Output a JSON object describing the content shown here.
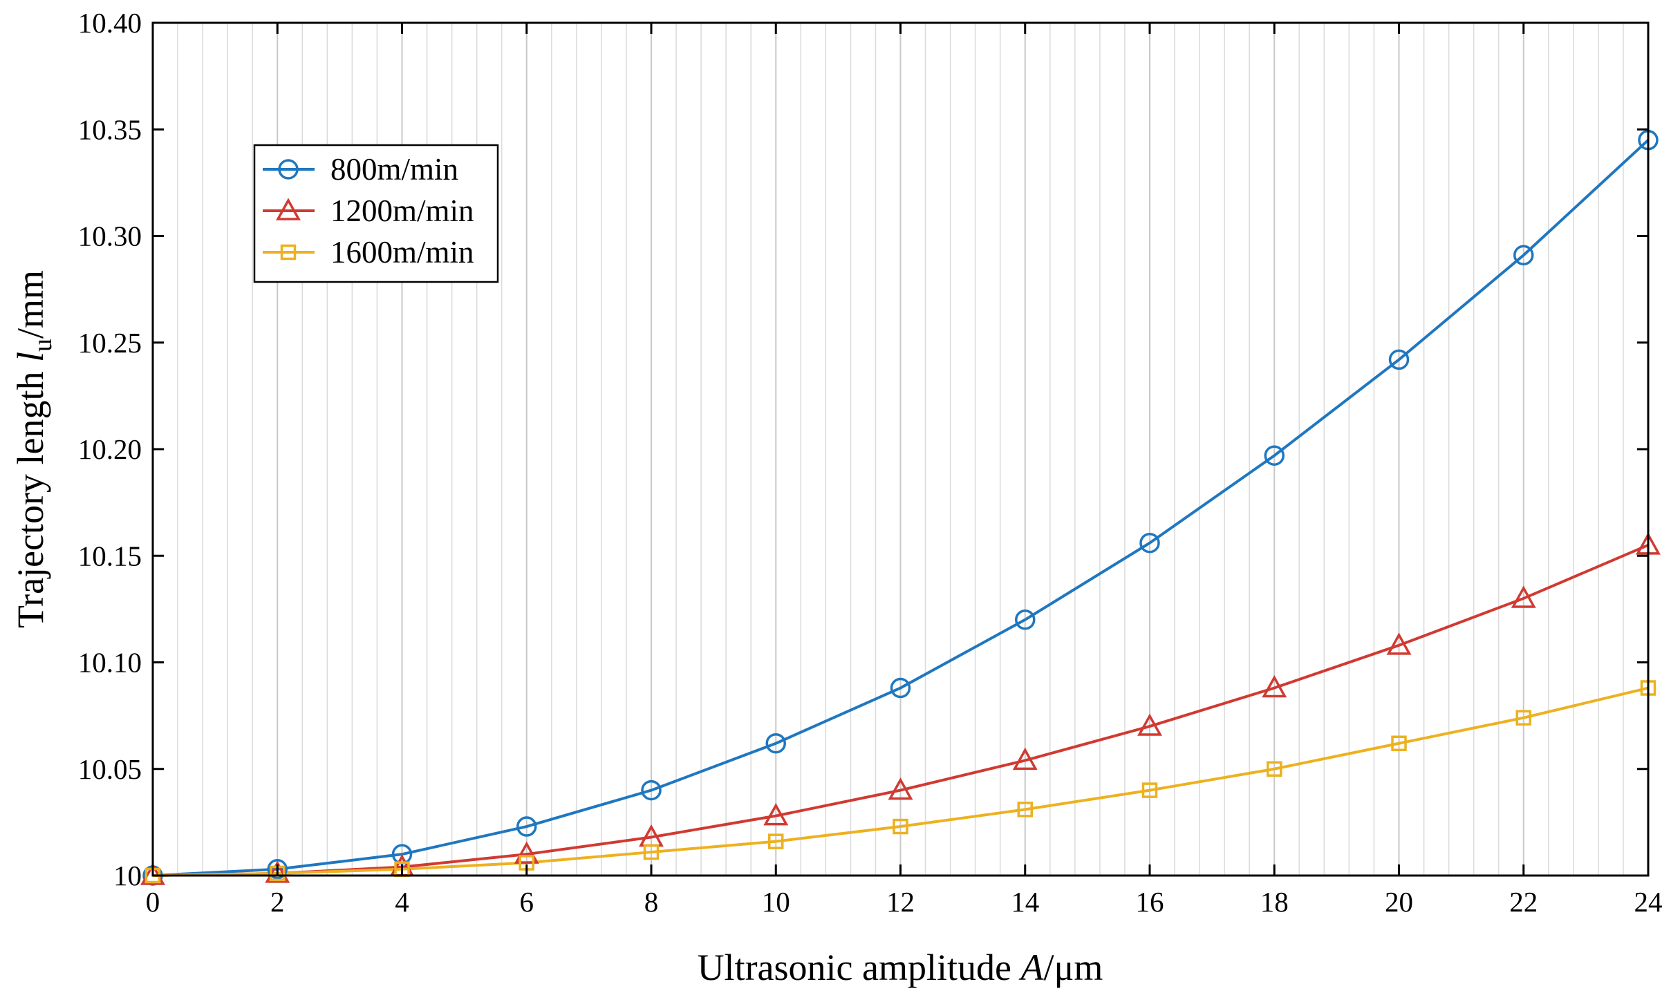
{
  "chart_data": {
    "type": "line",
    "title": "",
    "x": [
      0,
      2,
      4,
      6,
      8,
      10,
      12,
      14,
      16,
      18,
      20,
      22,
      24
    ],
    "xlabel": {
      "main": "Ultrasonic amplitude ",
      "var": "A",
      "unit": "/μm"
    },
    "ylabel": {
      "main": "Trajectory length ",
      "var": "l",
      "sub": "u",
      "unit": "/mm"
    },
    "xlim": [
      0,
      24
    ],
    "ylim": [
      10,
      10.4
    ],
    "xticks": [
      "0",
      "2",
      "4",
      "6",
      "8",
      "10",
      "12",
      "14",
      "16",
      "18",
      "20",
      "22",
      "24"
    ],
    "yticks": [
      "10",
      "10.05",
      "10.10",
      "10.15",
      "10.20",
      "10.25",
      "10.30",
      "10.35",
      "10.40"
    ],
    "grid": "vertical minor gridlines",
    "legend_position": "top-left",
    "series": [
      {
        "name": "800m/min",
        "color": "#1F77C0",
        "marker": "circle",
        "values": [
          10.0,
          10.003,
          10.01,
          10.023,
          10.04,
          10.062,
          10.088,
          10.12,
          10.156,
          10.197,
          10.242,
          10.291,
          10.345
        ]
      },
      {
        "name": "1200m/min",
        "color": "#D03A32",
        "marker": "triangle",
        "values": [
          10.0,
          10.001,
          10.004,
          10.01,
          10.018,
          10.028,
          10.04,
          10.054,
          10.07,
          10.088,
          10.108,
          10.13,
          10.155
        ]
      },
      {
        "name": "1600m/min",
        "color": "#EDB120",
        "marker": "square",
        "values": [
          10.0,
          10.001,
          10.003,
          10.006,
          10.011,
          10.016,
          10.023,
          10.031,
          10.04,
          10.05,
          10.062,
          10.074,
          10.088
        ]
      }
    ]
  }
}
